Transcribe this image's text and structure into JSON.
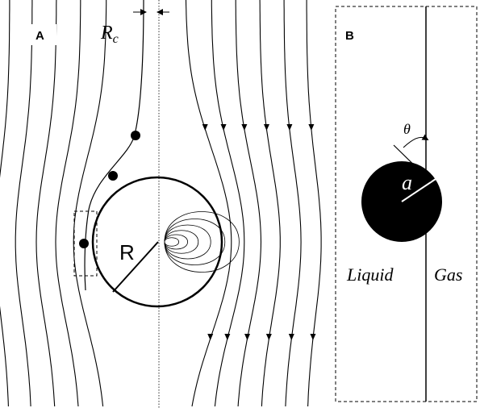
{
  "panel_a": {
    "label": "A",
    "capture_radius_label": "R",
    "capture_radius_subscript": "c",
    "sphere_radius_label": "R"
  },
  "panel_b": {
    "label": "B",
    "angle_label": "θ",
    "radius_label": "a",
    "left_phase": "Liquid",
    "right_phase": "Gas"
  }
}
